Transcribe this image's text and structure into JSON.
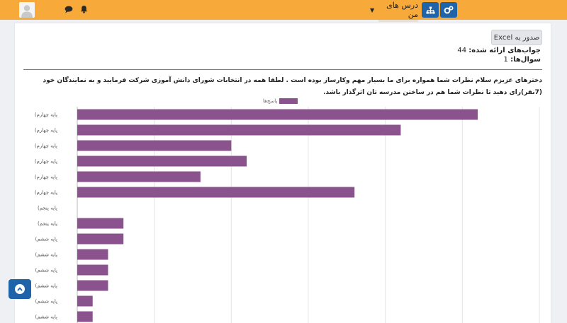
{
  "navbar": {
    "my_courses_label": "درس های من",
    "icons": [
      "user-avatar",
      "chat-icon",
      "bell-icon",
      "sitemap-icon",
      "cogs-icon"
    ]
  },
  "report": {
    "excel_button": "صدور به Excel",
    "answers_label": "جواب‌های ارائه شده:",
    "answers_value": "44",
    "questions_label": "سوال‌ها:",
    "questions_value": "1",
    "question_text": "دخترهای عزیزم سلام نظرات شما همواره برای ما بسیار مهم وکارساز بوده است . لطفا همه در انتخابات شورای دانش آموزی شرکت فرمایید و به نمایندگان خود (7نفر)رای دهید تا نظرات شما هم در ساختن مدرسه تان اثرگذار باشد."
  },
  "chart_data": {
    "type": "bar",
    "orientation": "horizontal",
    "legend": "پاسخ‌ها",
    "bar_color": "#8b538d",
    "categories": [
      "(پایه چهارم",
      "(پایه چهارم",
      "(پایه چهارم",
      "(پایه چهارم",
      "(پایه چهارم",
      "(پایه چهارم",
      "(پایه پنجم",
      "(پایه پنجم",
      "(پایه ششم",
      "(پایه ششم",
      "(پایه ششم",
      "(پایه ششم",
      "(پایه ششم",
      "(پایه ششم"
    ],
    "values": [
      13,
      10.5,
      5,
      5.5,
      4,
      9,
      0,
      1.5,
      1.5,
      1,
      1,
      1,
      0.5,
      0.5
    ],
    "xlim": [
      0,
      15
    ],
    "grid": true
  }
}
